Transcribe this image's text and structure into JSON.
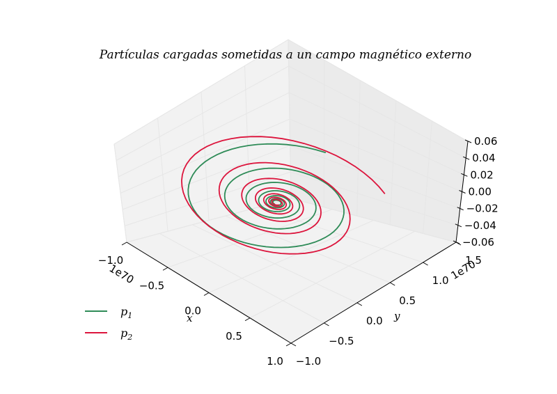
{
  "chart_data": {
    "type": "line",
    "title": "Partículas cargadas sometidas a un campo magnético externo",
    "xlabel": "x",
    "ylabel": "y",
    "zlabel": "",
    "x_offset_text": "1e70",
    "y_offset_text": "1e70",
    "xlim": [
      -1.0,
      1.0
    ],
    "ylim": [
      -1.0,
      1.5
    ],
    "zlim": [
      -0.06,
      0.06
    ],
    "x_ticks": [
      "−1.0",
      "−0.5",
      "0.0",
      "0.5",
      "1.0"
    ],
    "y_ticks": [
      "−1.0",
      "−0.5",
      "0.0",
      "0.5",
      "1.0",
      "1.5"
    ],
    "z_ticks": [
      "−0.06",
      "−0.04",
      "−0.02",
      "0.00",
      "0.02",
      "0.04",
      "0.06"
    ],
    "grid": true,
    "legend_position": "lower-left",
    "series": [
      {
        "name": "p1",
        "color": "#2e8b57"
      },
      {
        "name": "p2",
        "color": "#dc143c"
      }
    ]
  },
  "legend": {
    "p1_base": "p",
    "p1_sub": "1",
    "p2_base": "p",
    "p2_sub": "2"
  }
}
